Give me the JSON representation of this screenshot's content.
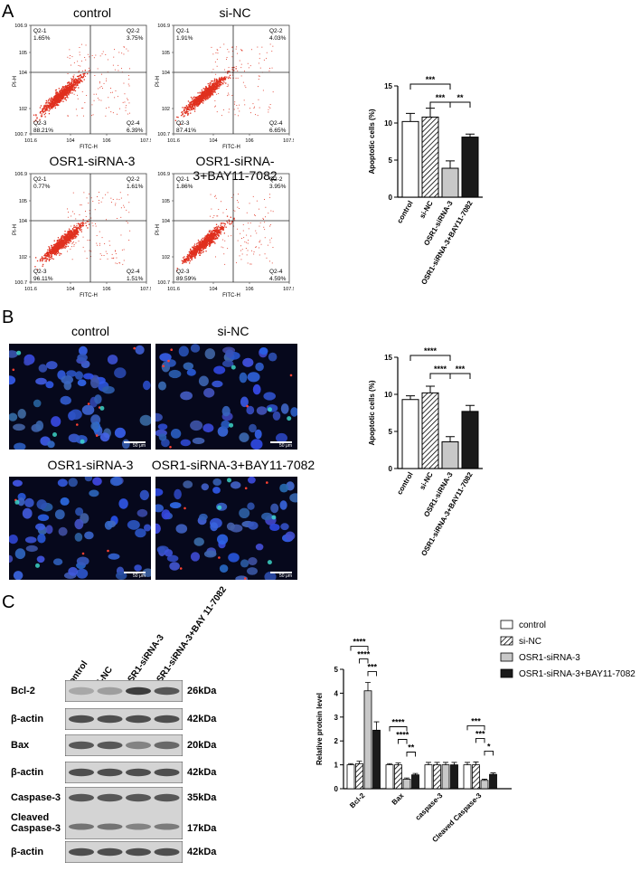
{
  "panels": {
    "a": "A",
    "b": "B",
    "c": "C"
  },
  "flow": {
    "plots": [
      {
        "title": "control",
        "q21": "Q2-1",
        "q21v": "1.65%",
        "q22": "Q2-2",
        "q22v": "3.75%",
        "q23": "Q2-3",
        "q23v": "88.21%",
        "q24": "Q2-4",
        "q24v": "6.39%"
      },
      {
        "title": "si-NC",
        "q21": "Q2-1",
        "q21v": "1.91%",
        "q22": "Q2-2",
        "q22v": "4.03%",
        "q23": "Q2-3",
        "q23v": "87.41%",
        "q24": "Q2-4",
        "q24v": "6.65%"
      },
      {
        "title": "OSR1-siRNA-3",
        "q21": "Q2-1",
        "q21v": "0.77%",
        "q22": "Q2-2",
        "q22v": "1.61%",
        "q23": "Q2-3",
        "q23v": "96.11%",
        "q24": "Q2-4",
        "q24v": "1.51%"
      },
      {
        "title": "OSR1-siRNA-3+BAY11-7082",
        "q21": "Q2-1",
        "q21v": "1.86%",
        "q22": "Q2-2",
        "q22v": "3.95%",
        "q23": "Q2-3",
        "q23v": "89.59%",
        "q24": "Q2-4",
        "q24v": "4.59%"
      }
    ],
    "xaxis": "FITC-H",
    "yaxis": "PI-H",
    "xticks": [
      "10^1.6",
      "10^4",
      "10^6",
      "10^7.9"
    ],
    "yticks": [
      "10^0.7",
      "10^2",
      "10^4",
      "10^5",
      "10^6.9"
    ]
  },
  "micro": {
    "titles": [
      "control",
      "si-NC",
      "OSR1-siRNA-3",
      "OSR1-siRNA-3+BAY11-7082"
    ],
    "scale": "50 μm"
  },
  "blot": {
    "lanes": [
      "control",
      "si-NC",
      "OSR1-siRNA-3",
      "OSR1-siRNA-3+BAY 11-7082"
    ],
    "rows": [
      {
        "label": "Bcl-2",
        "kda": "26kDa"
      },
      {
        "label": "β-actin",
        "kda": "42kDa"
      },
      {
        "label": "Bax",
        "kda": "20kDa"
      },
      {
        "label": "β-actin",
        "kda": "42kDa"
      },
      {
        "label": "Caspase-3",
        "kda": "35kDa"
      },
      {
        "label": "Cleaved\nCaspase-3",
        "kda": "17kDa"
      },
      {
        "label": "β-actin",
        "kda": "42kDa"
      }
    ]
  },
  "chart_data": [
    {
      "type": "bar",
      "ylabel": "Apoptotic cells (%)",
      "ylim": [
        0,
        15
      ],
      "yticks": [
        0,
        5,
        10,
        15
      ],
      "categories": [
        "control",
        "si-NC",
        "OSR1-siRNA-3",
        "OSR1-siRNA-3+BAY11-7082"
      ],
      "values": [
        10.2,
        10.8,
        3.9,
        8.1
      ],
      "errors": [
        1.1,
        1.2,
        1.0,
        0.4
      ],
      "fills": [
        "#ffffff",
        "hatch",
        "#c8c8c8",
        "#1a1a1a"
      ],
      "annotations": [
        "***",
        "***",
        "**"
      ]
    },
    {
      "type": "bar",
      "ylabel": "Apoptotic cells (%)",
      "ylim": [
        0,
        15
      ],
      "yticks": [
        0,
        5,
        10,
        15
      ],
      "categories": [
        "control",
        "si-NC",
        "OSR1-siRNA-3",
        "OSR1-siRNA-3+BAY11-7082"
      ],
      "values": [
        9.3,
        10.2,
        3.6,
        7.7
      ],
      "errors": [
        0.5,
        0.9,
        0.7,
        0.8
      ],
      "fills": [
        "#ffffff",
        "hatch",
        "#c8c8c8",
        "#1a1a1a"
      ],
      "annotations": [
        "****",
        "****",
        "***"
      ]
    },
    {
      "type": "bar",
      "ylabel": "Relative protein level",
      "ylim": [
        0,
        5
      ],
      "yticks": [
        0,
        1,
        2,
        3,
        4,
        5
      ],
      "categories": [
        "Bcl-2",
        "Bax",
        "caspase-3",
        "Cleaved Caspase-3"
      ],
      "series": [
        {
          "name": "control",
          "fill": "#ffffff",
          "values": [
            1.0,
            1.0,
            1.0,
            1.0
          ],
          "errors": [
            0.05,
            0.05,
            0.1,
            0.1
          ]
        },
        {
          "name": "si-NC",
          "fill": "hatch",
          "values": [
            1.05,
            1.0,
            1.0,
            1.0
          ],
          "errors": [
            0.1,
            0.08,
            0.1,
            0.12
          ]
        },
        {
          "name": "OSR1-siRNA-3",
          "fill": "#c8c8c8",
          "values": [
            4.1,
            0.4,
            1.0,
            0.35
          ],
          "errors": [
            0.35,
            0.05,
            0.1,
            0.05
          ]
        },
        {
          "name": "OSR1-siRNA-3+BAY11-7082",
          "fill": "#1a1a1a",
          "values": [
            2.45,
            0.58,
            1.0,
            0.6
          ],
          "errors": [
            0.35,
            0.06,
            0.1,
            0.06
          ]
        }
      ],
      "annotations": [
        [
          "****",
          "****",
          "***"
        ],
        [
          "****",
          "****",
          "**"
        ],
        [],
        [
          "***",
          "***",
          "*"
        ]
      ]
    }
  ]
}
